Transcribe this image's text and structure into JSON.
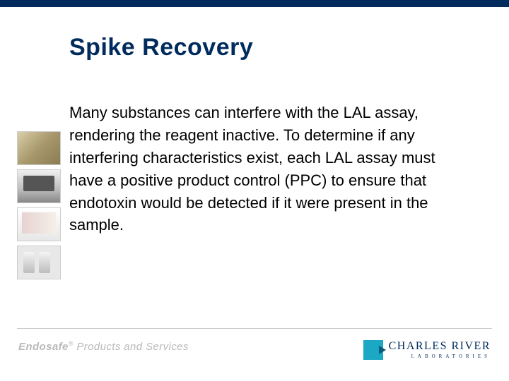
{
  "colors": {
    "brand_navy": "#002b5c",
    "footer_gray": "#b9b9b9",
    "logo_teal": "#1ba8c4",
    "background": "#ffffff"
  },
  "title": "Spike Recovery",
  "body": "Many substances can interfere with the LAL assay, rendering the reagent inactive. To determine if any interfering characteristics exist, each LAL assay must have a positive product control (PPC) to ensure that endotoxin would be detected if it were present in the sample.",
  "footer": {
    "left_brand": "Endosafe",
    "left_reg": "®",
    "left_rest": " Products and Services",
    "logo_line1": "CHARLES RIVER",
    "logo_line2": "LABORATORIES"
  },
  "sidebar_images": [
    "lab-reagent",
    "device",
    "pipetting",
    "vials"
  ]
}
